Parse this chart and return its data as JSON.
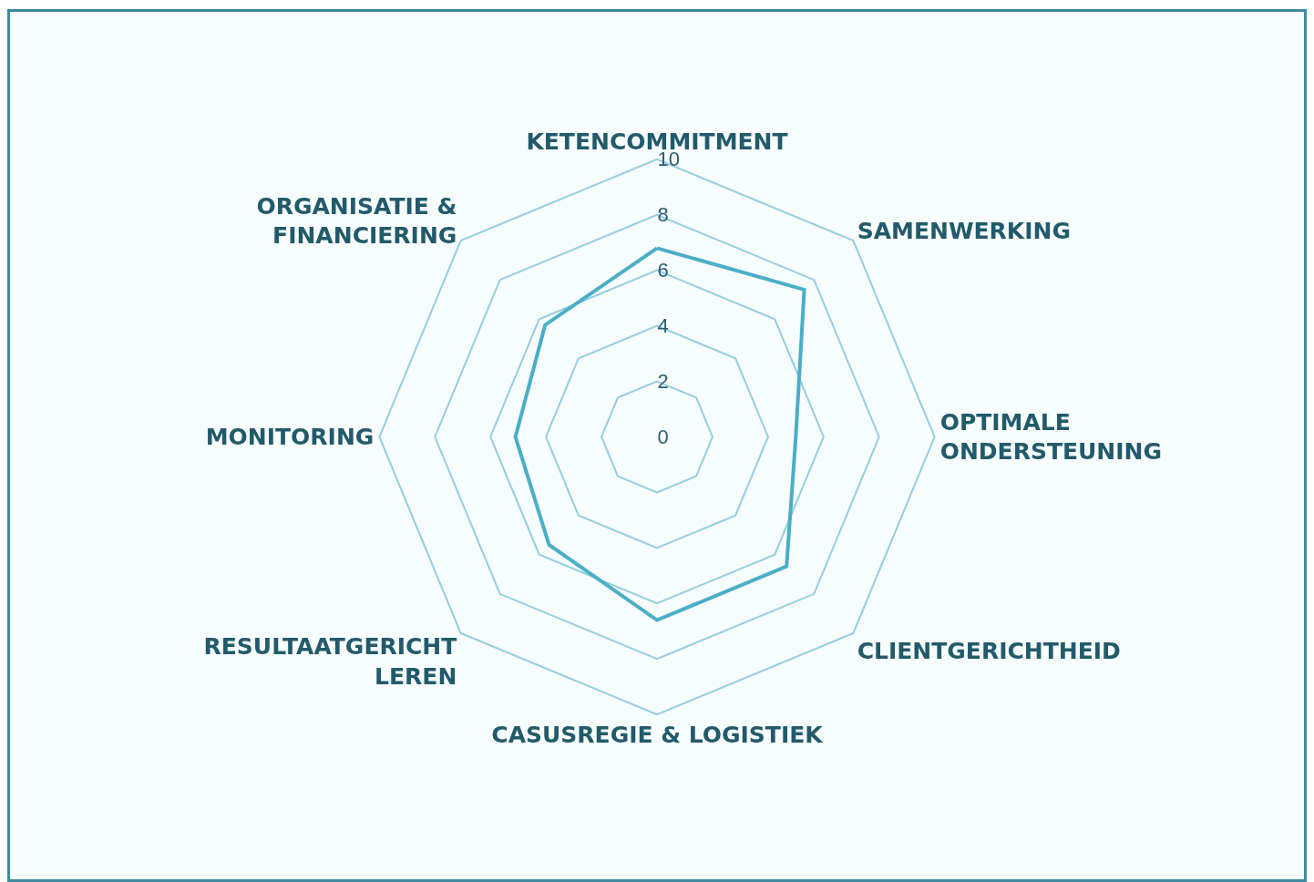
{
  "chart_data": {
    "type": "radar",
    "categories": [
      "KETENCOMMITMENT",
      "SAMENWERKING",
      "OPTIMALE ONDERSTEUNING",
      "CLIENTGERICHTHEID",
      "CASUSREGIE & LOGISTIEK",
      "RESULTAATGERICHT LEREN",
      "MONITORING",
      "ORGANISATIE & FINANCIERING"
    ],
    "series": [
      {
        "color": "#4aaec8",
        "values": [
          6.8,
          7.5,
          5.0,
          6.6,
          6.6,
          5.5,
          5.1,
          5.7
        ]
      }
    ],
    "ylim": [
      0,
      10
    ],
    "yticks": [
      0,
      2,
      4,
      6,
      8,
      10
    ],
    "grid": true,
    "marker": "none",
    "line_style": "solid"
  }
}
